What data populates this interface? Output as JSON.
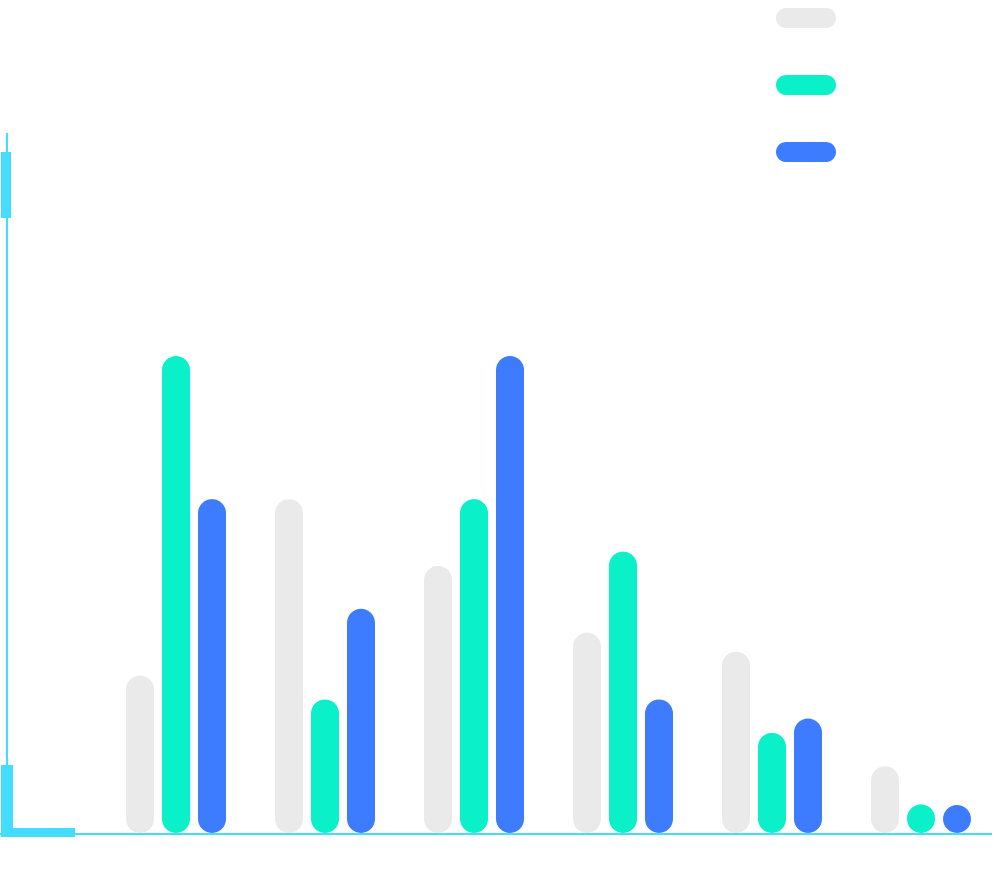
{
  "chart_data": {
    "type": "bar",
    "categories": [
      "",
      "",
      "",
      "",
      "",
      ""
    ],
    "ylim": [
      0,
      100
    ],
    "grid": false,
    "legend_position": "top-right",
    "bar_style": "rounded-pill",
    "series": [
      {
        "color": "#eaeaea",
        "values": [
          33,
          70,
          56,
          42,
          38,
          14
        ]
      },
      {
        "color": "#0af0c9",
        "values": [
          100,
          28,
          70,
          59,
          21,
          6
        ]
      },
      {
        "color": "#3d7bff",
        "values": [
          70,
          47,
          100,
          28,
          24,
          4
        ]
      }
    ],
    "axis_color": "#44dcff"
  }
}
